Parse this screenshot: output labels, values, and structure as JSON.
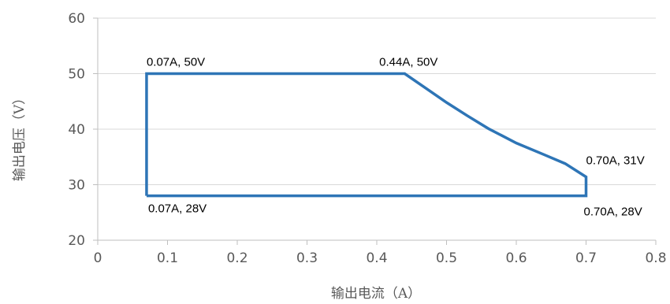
{
  "chart_data": {
    "type": "line",
    "xlabel": "输出电流（A）",
    "ylabel": "输出电压（V）",
    "xlim": [
      0,
      0.8
    ],
    "ylim": [
      20,
      60
    ],
    "x_ticks": [
      0,
      0.1,
      0.2,
      0.3,
      0.4,
      0.5,
      0.6,
      0.7,
      0.8
    ],
    "x_tick_labels": [
      "0",
      "0.1",
      "0.2",
      "0.3",
      "0.4",
      "0.5",
      "0.6",
      "0.7",
      "0.8"
    ],
    "y_ticks": [
      20,
      30,
      40,
      50,
      60
    ],
    "y_tick_labels": [
      "20",
      "30",
      "40",
      "50",
      "60"
    ],
    "grid": "horizontal",
    "series": [
      {
        "color": "#2e75b6",
        "points": [
          {
            "x": 0.07,
            "y": 28
          },
          {
            "x": 0.07,
            "y": 50
          },
          {
            "x": 0.44,
            "y": 50
          },
          {
            "x": 0.47,
            "y": 47.4
          },
          {
            "x": 0.5,
            "y": 44.8
          },
          {
            "x": 0.53,
            "y": 42.4
          },
          {
            "x": 0.56,
            "y": 40.1
          },
          {
            "x": 0.6,
            "y": 37.5
          },
          {
            "x": 0.64,
            "y": 35.4
          },
          {
            "x": 0.67,
            "y": 33.8
          },
          {
            "x": 0.7,
            "y": 31.4
          },
          {
            "x": 0.7,
            "y": 28
          },
          {
            "x": 0.07,
            "y": 28
          }
        ]
      }
    ],
    "annotations": [
      {
        "text": "0.07A, 50V",
        "x": 0.07,
        "y": 50,
        "placement": "above-right"
      },
      {
        "text": "0.44A, 50V",
        "x": 0.44,
        "y": 50,
        "placement": "above-left"
      },
      {
        "text": "0.70A, 31V",
        "x": 0.7,
        "y": 31.4,
        "placement": "above-center"
      },
      {
        "text": "0.07A, 28V",
        "x": 0.07,
        "y": 28,
        "placement": "below-right"
      },
      {
        "text": "0.70A, 28V",
        "x": 0.7,
        "y": 28,
        "placement": "below-center"
      }
    ]
  }
}
